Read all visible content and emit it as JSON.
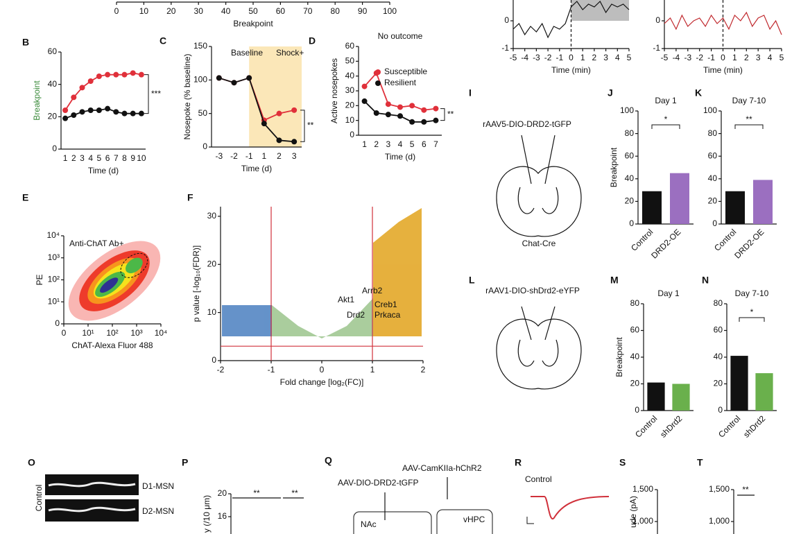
{
  "chart_data": [
    {
      "type": "line",
      "xlabel": "Breakpoint",
      "xlim": [
        0,
        100
      ],
      "xticks": [
        0,
        10,
        20,
        30,
        40,
        50,
        60,
        70,
        80,
        90,
        100
      ]
    },
    {
      "type": "line",
      "xlabel": "Time (min)",
      "xlim": [
        -5,
        5
      ],
      "xticks": [
        -5,
        -4,
        -3,
        -2,
        -1,
        0,
        1,
        2,
        3,
        4,
        5
      ],
      "ylim": [
        -1,
        0.75
      ],
      "yticks": [
        -1,
        0
      ],
      "shaded": [
        0,
        5
      ],
      "vlines": [
        0
      ],
      "series": [
        {
          "color": "#111111",
          "x": [
            -5,
            -4.5,
            -4,
            -3.5,
            -3,
            -2.5,
            -2,
            -1.5,
            -1,
            -0.5,
            0,
            0.5,
            1,
            1.5,
            2,
            2.5,
            3,
            3.5,
            4,
            4.5,
            5
          ],
          "values": [
            -0.3,
            -0.1,
            -0.5,
            -0.2,
            -0.4,
            -0.1,
            -0.6,
            -0.2,
            -0.3,
            -0.1,
            0.5,
            0.7,
            0.4,
            0.6,
            0.5,
            0.7,
            0.3,
            0.6,
            0.5,
            0.6,
            0.4
          ]
        }
      ]
    },
    {
      "type": "line",
      "xlabel": "Time (min)",
      "xlim": [
        -5,
        5
      ],
      "xticks": [
        -5,
        -4,
        -3,
        -2,
        -1,
        0,
        1,
        2,
        3,
        4,
        5
      ],
      "ylim": [
        -1,
        0.75
      ],
      "yticks": [
        -1,
        0
      ],
      "vlines": [
        0
      ],
      "series": [
        {
          "color": "#c0282d",
          "x": [
            -5,
            -4.5,
            -4,
            -3.5,
            -3,
            -2.5,
            -2,
            -1.5,
            -1,
            -0.5,
            0,
            0.5,
            1,
            1.5,
            2,
            2.5,
            3,
            3.5,
            4,
            4.5,
            5
          ],
          "values": [
            -0.1,
            0.1,
            -0.3,
            0.2,
            -0.2,
            0.0,
            0.1,
            -0.2,
            0.2,
            -0.1,
            0.1,
            -0.3,
            0.2,
            0.0,
            0.3,
            -0.2,
            0.1,
            0.2,
            -0.3,
            0.0,
            -0.5
          ]
        }
      ]
    },
    {
      "type": "line",
      "panel": "B",
      "ylabel": "Breakpoint",
      "xlabel": "Time (d)",
      "categories": [
        "1",
        "2",
        "3",
        "4",
        "5",
        "6",
        "7",
        "8",
        "9",
        "10"
      ],
      "ylim": [
        0,
        60
      ],
      "yticks": [
        0,
        20,
        40,
        60
      ],
      "sig": "***",
      "series": [
        {
          "color": "#e0303a",
          "values": [
            24,
            32,
            38,
            42,
            45,
            46,
            46,
            46,
            47,
            46
          ]
        },
        {
          "color": "#111111",
          "values": [
            19,
            21,
            23,
            24,
            24,
            25,
            23,
            22,
            22,
            22
          ]
        }
      ]
    },
    {
      "type": "line",
      "panel": "C",
      "ylabel": "Nosepoke (% baseline)",
      "xlabel": "Time (d)",
      "categories": [
        "-3",
        "-2",
        "-1",
        "1",
        "2",
        "3"
      ],
      "ylim": [
        0,
        150
      ],
      "yticks": [
        0,
        50,
        100,
        150
      ],
      "sig": "**",
      "annotations": [
        "Baseline",
        "Shock+"
      ],
      "series": [
        {
          "color": "#e0303a",
          "values": [
            103,
            96,
            103,
            40,
            50,
            55
          ]
        },
        {
          "color": "#111111",
          "values": [
            103,
            96,
            103,
            35,
            10,
            8
          ]
        }
      ]
    },
    {
      "type": "line",
      "panel": "D",
      "title": "No outcome",
      "ylabel": "Active nosepokes",
      "xlabel": "Time (d)",
      "categories": [
        "1",
        "2",
        "3",
        "4",
        "5",
        "6",
        "7"
      ],
      "ylim": [
        0,
        60
      ],
      "yticks": [
        0,
        10,
        20,
        30,
        40,
        50,
        60
      ],
      "sig": "**",
      "series": [
        {
          "name": "Susceptible",
          "color": "#e0303a",
          "values": [
            33,
            42,
            21,
            19,
            20,
            17,
            18
          ]
        },
        {
          "name": "Resilient",
          "color": "#111111",
          "values": [
            23,
            15,
            14,
            13,
            9,
            9,
            10
          ]
        }
      ]
    },
    {
      "type": "scatter",
      "panel": "E",
      "ylabel": "PE",
      "xlabel": "ChAT-Alexa Fluor 488",
      "annotations": [
        "Anti-ChAT Ab+"
      ],
      "xlog": true,
      "ylog": true,
      "xlim": [
        1,
        10000
      ],
      "ylim": [
        1,
        10000
      ],
      "xticks": [
        {
          "value": 1,
          "label": "0"
        },
        {
          "value": 10,
          "label": "10¹"
        },
        {
          "value": 100,
          "label": "10²"
        },
        {
          "value": 1000,
          "label": "10³"
        },
        {
          "value": 10000,
          "label": "10⁴"
        }
      ],
      "yticks": [
        {
          "value": 1,
          "label": "0"
        },
        {
          "value": 10,
          "label": "10¹"
        },
        {
          "value": 100,
          "label": "10²"
        },
        {
          "value": 1000,
          "label": "10³"
        },
        {
          "value": 10000,
          "label": "10⁴"
        }
      ]
    },
    {
      "type": "scatter",
      "panel": "F",
      "ylabel": "p value [-log₁₀(FDR)]",
      "xlabel": "Fold change [log₂(FC)]",
      "xlim": [
        -2,
        2
      ],
      "xticks": [
        -2,
        -1,
        0,
        1,
        2
      ],
      "ylim": [
        0,
        32
      ],
      "yticks": [
        0,
        10,
        20,
        30
      ],
      "vlines": [
        -1,
        1
      ],
      "hline": 3,
      "annotations": [
        "Arrb2",
        "Akt1",
        "Creb1",
        "Drd2",
        "Prkaca"
      ]
    },
    {
      "type": "bar",
      "panel": "J",
      "title": "Day 1",
      "ylabel": "Breakpoint",
      "categories": [
        "Control",
        "DRD2-OE"
      ],
      "values": [
        29,
        45
      ],
      "colors": [
        "#111111",
        "#9b6fc0"
      ],
      "ylim": [
        0,
        100
      ],
      "yticks": [
        0,
        20,
        40,
        60,
        80,
        100
      ],
      "sig": "*"
    },
    {
      "type": "bar",
      "panel": "K",
      "title": "Day 7-10",
      "categories": [
        "Control",
        "DRD2-OE"
      ],
      "values": [
        29,
        39
      ],
      "colors": [
        "#111111",
        "#9b6fc0"
      ],
      "ylim": [
        0,
        100
      ],
      "yticks": [
        0,
        20,
        40,
        60,
        80,
        100
      ],
      "sig": "**"
    },
    {
      "type": "bar",
      "panel": "M",
      "title": "Day 1",
      "ylabel": "Breakpoint",
      "categories": [
        "Control",
        "shDrd2"
      ],
      "values": [
        21,
        20
      ],
      "colors": [
        "#111111",
        "#6ab04c"
      ],
      "ylim": [
        0,
        80
      ],
      "yticks": [
        0,
        20,
        40,
        60,
        80
      ]
    },
    {
      "type": "bar",
      "panel": "N",
      "title": "Day 7-10",
      "categories": [
        "Control",
        "shDrd2"
      ],
      "values": [
        41,
        28
      ],
      "colors": [
        "#111111",
        "#6ab04c"
      ],
      "ylim": [
        0,
        80
      ],
      "yticks": [
        0,
        20,
        40,
        60,
        80
      ],
      "sig": "*"
    },
    {
      "type": "scatter",
      "panel": "P",
      "ylabel": "y (/10 μm)",
      "ylim": [
        0,
        20
      ],
      "yticks": [
        16,
        20
      ],
      "sig": [
        "**",
        "**"
      ]
    },
    {
      "type": "bar",
      "panel": "S",
      "ylabel": "ude (pA)",
      "ylim": [
        0,
        1500
      ],
      "yticks": [
        {
          "value": 1000,
          "label": "1,000"
        },
        {
          "value": 1500,
          "label": "1,500"
        }
      ]
    },
    {
      "type": "bar",
      "panel": "T",
      "ylim": [
        0,
        1500
      ],
      "yticks": [
        {
          "value": 1000,
          "label": "1,000"
        },
        {
          "value": 1500,
          "label": "1,500"
        }
      ],
      "sig": "**"
    }
  ],
  "diagrams": {
    "I": {
      "panel": "I",
      "label": "rAAV5-DIO-DRD2-tGFP",
      "caption": "Chat-Cre"
    },
    "L": {
      "panel": "L",
      "label": "rAAV1-DIO-shDrd2-eYFP"
    },
    "O": {
      "panel": "O",
      "side": "Control",
      "labels": [
        "D1-MSN",
        "D2-MSN"
      ]
    },
    "Q": {
      "panel": "Q",
      "texts": [
        "AAV-CamKIIa-hChR2",
        "AAV-DIO-DRD2-tGFP",
        "NAc",
        "vHPC"
      ]
    },
    "R": {
      "panel": "R",
      "label": "Control"
    }
  }
}
